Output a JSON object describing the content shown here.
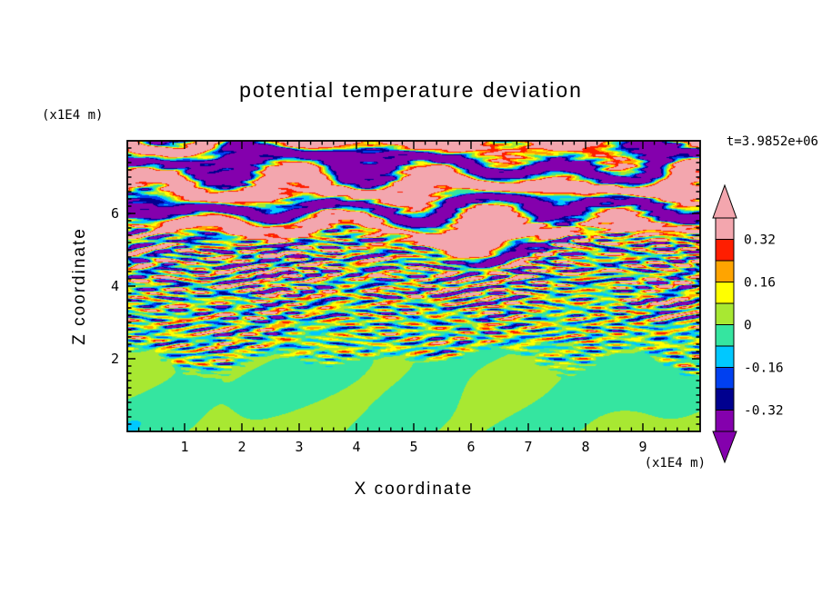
{
  "figure": {
    "background": "#ffffff",
    "text_color": "#000000"
  },
  "chart_data": {
    "type": "heatmap",
    "title": "potential temperature deviation",
    "xlabel": "X coordinate",
    "ylabel": "Z coordinate",
    "x_unit": "(x1E4 m)",
    "y_unit": "(x1E4 m)",
    "time_annotation": "t=3.9852e+06",
    "xlim": [
      0,
      10
    ],
    "ylim": [
      0,
      8
    ],
    "xticks": [
      1,
      2,
      3,
      4,
      5,
      6,
      7,
      8,
      9
    ],
    "yticks": [
      2,
      4,
      6
    ],
    "minor_tick_step_x": 0.2,
    "minor_tick_step_y": 0.2,
    "grid": "off",
    "frame_color": "#000000",
    "colorbar": {
      "orientation": "vertical",
      "position": "right",
      "levels": [
        -0.4,
        -0.32,
        -0.24,
        -0.16,
        -0.08,
        0,
        0.08,
        0.16,
        0.24,
        0.32,
        0.4
      ],
      "band_colors": [
        "#8400ad",
        "#00008f",
        "#0040f0",
        "#00c8ff",
        "#35e5a0",
        "#a8e832",
        "#ffff00",
        "#ffa400",
        "#ff1e00",
        "#f3a6ae"
      ],
      "under_arrow_color": "#8400ad",
      "over_arrow_color": "#f3a6ae",
      "tick_labels": [
        {
          "value": 0.32,
          "label": "0.32"
        },
        {
          "value": 0.16,
          "label": "0.16"
        },
        {
          "value": 0,
          "label": "0"
        },
        {
          "value": -0.16,
          "label": "-0.16"
        },
        {
          "value": -0.32,
          "label": "-0.32"
        }
      ]
    },
    "field": {
      "description": "vertical cross-section: smooth near-zero green boundary layer below z=2, fine horizontal turbulent streaks between z=2 and z=5.4, thick wavy high-amplitude pink/purple layers above",
      "regions": [
        {
          "name": "boundary-layer",
          "z_range": [
            0,
            2
          ],
          "amplitude": 0.03,
          "bias": -0.01
        },
        {
          "name": "turbulent-interior",
          "z_range": [
            2,
            5.4
          ],
          "amplitude_min": 0.15,
          "amplitude_max": 0.32
        },
        {
          "name": "wave-layers",
          "z_range": [
            5.4,
            8
          ],
          "amplitude": 0.62,
          "bias": 0.06,
          "layer_frequency": 0.8
        }
      ]
    }
  }
}
